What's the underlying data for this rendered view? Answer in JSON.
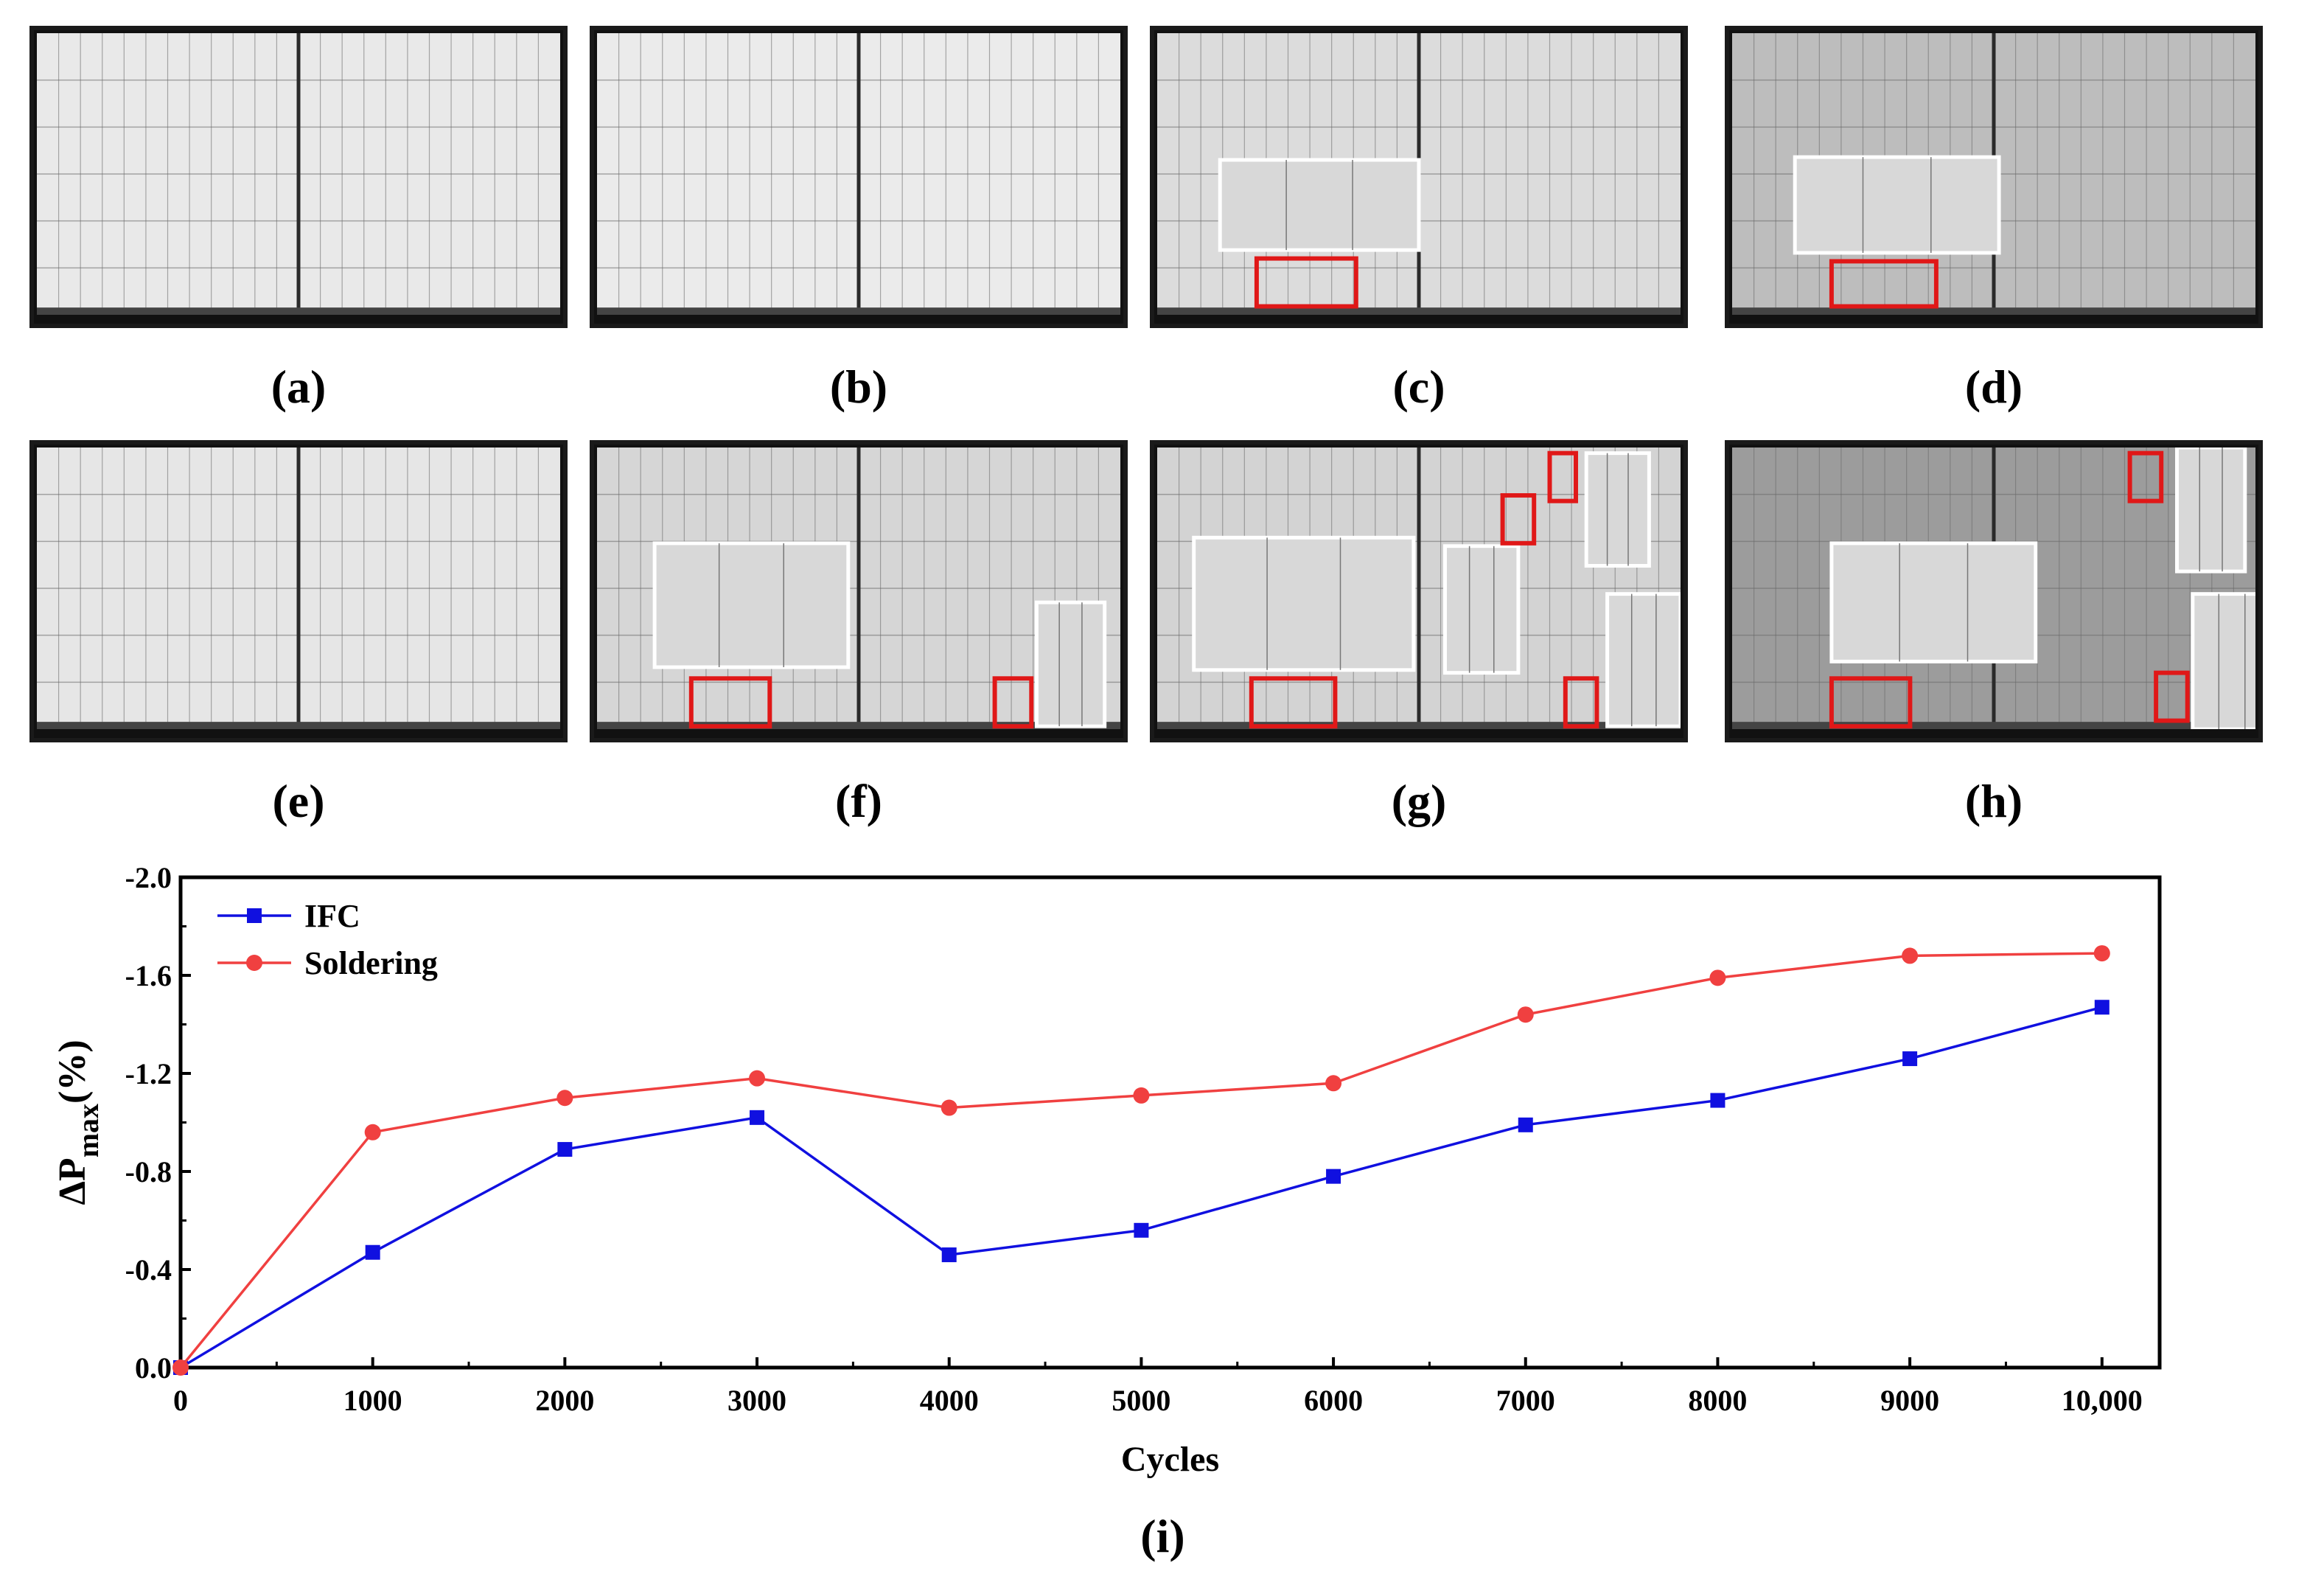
{
  "panels": [
    {
      "id": "a",
      "label": "(a)",
      "tone": "#e9e9e9",
      "white_boxes": [],
      "red_boxes": []
    },
    {
      "id": "b",
      "label": "(b)",
      "tone": "#ebebeb",
      "white_boxes": [],
      "red_boxes": []
    },
    {
      "id": "c",
      "label": "(c)",
      "tone": "#dcdcdc",
      "white_boxes": [
        [
          0.12,
          0.45,
          0.38,
          0.32
        ]
      ],
      "red_boxes": [
        [
          0.19,
          0.8,
          0.19,
          0.17
        ]
      ]
    },
    {
      "id": "d",
      "label": "(d)",
      "tone": "#bdbdbd",
      "white_boxes": [
        [
          0.12,
          0.44,
          0.39,
          0.34
        ]
      ],
      "red_boxes": [
        [
          0.19,
          0.81,
          0.2,
          0.16
        ]
      ]
    },
    {
      "id": "e",
      "label": "(e)",
      "tone": "#e6e6e6",
      "white_boxes": [],
      "red_boxes": []
    },
    {
      "id": "f",
      "label": "(f)",
      "tone": "#d6d6d6",
      "white_boxes": [
        [
          0.11,
          0.34,
          0.37,
          0.44
        ],
        [
          0.84,
          0.55,
          0.13,
          0.44
        ]
      ],
      "red_boxes": [
        [
          0.18,
          0.82,
          0.15,
          0.17
        ],
        [
          0.76,
          0.82,
          0.07,
          0.17
        ]
      ]
    },
    {
      "id": "g",
      "label": "(g)",
      "tone": "#d3d3d3",
      "white_boxes": [
        [
          0.07,
          0.32,
          0.42,
          0.47
        ],
        [
          0.55,
          0.35,
          0.14,
          0.45
        ],
        [
          0.82,
          0.02,
          0.12,
          0.4
        ],
        [
          0.86,
          0.52,
          0.14,
          0.47
        ]
      ],
      "red_boxes": [
        [
          0.18,
          0.82,
          0.16,
          0.17
        ],
        [
          0.66,
          0.17,
          0.06,
          0.17
        ],
        [
          0.75,
          0.02,
          0.05,
          0.17
        ],
        [
          0.78,
          0.82,
          0.06,
          0.17
        ]
      ]
    },
    {
      "id": "h",
      "label": "(h)",
      "tone": "#9c9c9c",
      "white_boxes": [
        [
          0.19,
          0.34,
          0.39,
          0.42
        ],
        [
          0.85,
          0.0,
          0.13,
          0.44
        ],
        [
          0.88,
          0.52,
          0.15,
          0.48
        ]
      ],
      "red_boxes": [
        [
          0.19,
          0.82,
          0.15,
          0.17
        ],
        [
          0.76,
          0.02,
          0.06,
          0.17
        ],
        [
          0.81,
          0.8,
          0.06,
          0.17
        ]
      ]
    }
  ],
  "figure_label": "(i)",
  "chart_data": {
    "type": "line",
    "xlabel": "Cycles",
    "ylabel_main": "ΔP",
    "ylabel_sub": "max",
    "ylabel_unit": "(%)",
    "x": [
      0,
      1000,
      2000,
      3000,
      4000,
      5000,
      6000,
      7000,
      8000,
      9000,
      10000
    ],
    "x_tick_labels": [
      "0",
      "1000",
      "2000",
      "3000",
      "4000",
      "5000",
      "6000",
      "7000",
      "8000",
      "9000",
      "10,000"
    ],
    "xlim": [
      0,
      10300
    ],
    "ylim": [
      0.0,
      -2.0
    ],
    "y_ticks": [
      0.0,
      -0.4,
      -0.8,
      -1.2,
      -1.6,
      -2.0
    ],
    "y_tick_labels": [
      "0.0",
      "-0.4",
      "-0.8",
      "-1.2",
      "-1.6",
      "-2.0"
    ],
    "legend_position": "top-left",
    "grid": false,
    "series": [
      {
        "name": "IFC",
        "color": "#1010e0",
        "marker": "square",
        "values": [
          0.0,
          -0.47,
          -0.89,
          -1.02,
          -0.46,
          -0.56,
          -0.78,
          -0.99,
          -1.09,
          -1.26,
          -1.47
        ]
      },
      {
        "name": "Soldering",
        "color": "#f04040",
        "marker": "circle",
        "values": [
          0.0,
          -0.96,
          -1.1,
          -1.18,
          -1.06,
          -1.11,
          -1.16,
          -1.44,
          -1.59,
          -1.68,
          -1.69
        ]
      }
    ]
  }
}
